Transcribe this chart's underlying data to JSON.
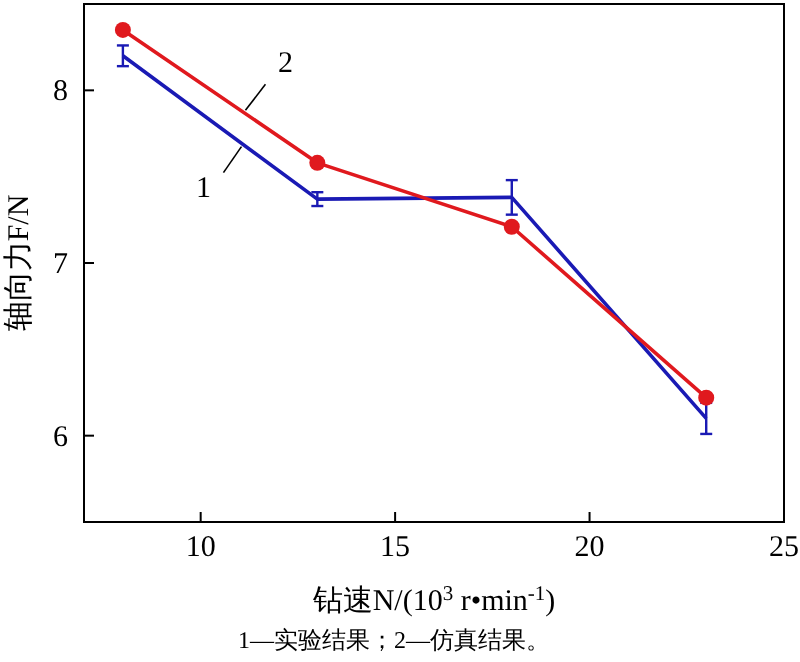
{
  "chart_data": {
    "type": "line",
    "xlabel": "钻速N/(10$^{3}$ r•min$^{-1}$)",
    "ylabel": "轴向力F/N",
    "x": [
      8,
      13,
      18,
      23
    ],
    "series": [
      {
        "name": "1",
        "color": "#1a1ab4",
        "values": [
          8.2,
          7.37,
          7.38,
          6.1
        ],
        "errors": [
          0.06,
          0.04,
          0.1,
          0.09
        ],
        "marker": "none"
      },
      {
        "name": "2",
        "color": "#e0191e",
        "values": [
          8.35,
          7.58,
          7.21,
          6.22
        ],
        "marker": "circle"
      }
    ],
    "xlim": [
      7,
      25
    ],
    "xticks": [
      10,
      15,
      20,
      25
    ],
    "ylim": [
      5.5,
      8.5
    ],
    "yticks": [
      6,
      7,
      8
    ],
    "grid": false,
    "annotations": [
      "1—实验结果；2—仿真结果。"
    ]
  }
}
